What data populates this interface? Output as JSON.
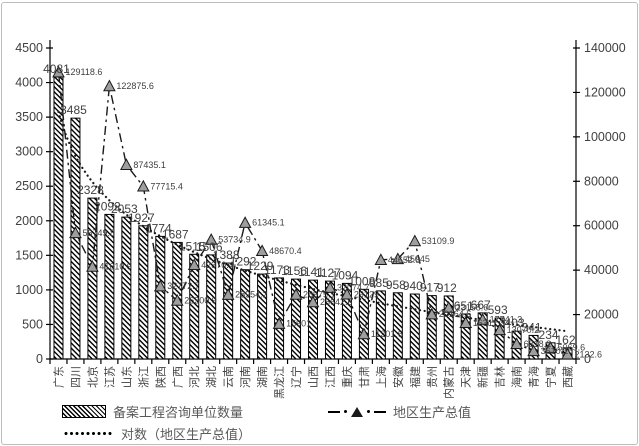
{
  "chart_data": {
    "type": "combo-bar-line",
    "title": "",
    "categories": [
      "广东",
      "四川",
      "北京",
      "江苏",
      "山东",
      "浙江",
      "陕西",
      "广西",
      "河北",
      "湖北",
      "云南",
      "河南",
      "湖南",
      "黑龙江",
      "辽宁",
      "山西",
      "江西",
      "重庆",
      "甘肃",
      "上海",
      "安徽",
      "福建",
      "贵州",
      "内蒙古",
      "天津",
      "新疆",
      "吉林",
      "海南",
      "青海",
      "宁夏",
      "西藏"
    ],
    "series": [
      {
        "name": "备案工程咨询单位数量",
        "type": "bar",
        "axis": "left",
        "pattern": "diagonal-hatch",
        "values": [
          4081,
          3485,
          2328,
          2092,
          2053,
          1927,
          1774,
          1687,
          1515,
          1506,
          1388,
          1292,
          1229,
          1173,
          1156,
          1141,
          1127,
          1094,
          1008,
          985,
          958,
          940,
          917,
          912,
          651,
          667,
          593,
          403,
          341,
          234,
          162
        ]
      },
      {
        "name": "地区生产总值",
        "type": "line",
        "axis": "right",
        "line_style": "dash-dot",
        "marker": "triangle",
        "values": [
          129118.6,
          56749.8,
          41610.9,
          122875.6,
          87435.1,
          77715.4,
          32772.7,
          26300.9,
          42370.4,
          53734.9,
          28954.2,
          61345.1,
          48670.4,
          15901.0,
          28975.1,
          25642.6,
          32074.7,
          29129.0,
          11201.6,
          44652.8,
          45045.0,
          53109.9,
          20164.6,
          23158.6,
          16311.3,
          17741.3,
          13070.2,
          6818.2,
          3610.1,
          5069.6,
          2132.6
        ],
        "labels": [
          "129118.6",
          "56749.8",
          "41610.9",
          "122875.6",
          "87435.1",
          "77715.4",
          "32772.7",
          "26300.9",
          "42370.4",
          "53734.9",
          "28954.2",
          "61345.1",
          "48670.4",
          "15901",
          "28975.1",
          "25642.6",
          "32074.7",
          "29129",
          "11201.6",
          "44652.8",
          "45045",
          "53109.9",
          "20164.6",
          "23158.6",
          "16311.3",
          "17741.3",
          "13070.2",
          "6818.2",
          "3610.1",
          "5069.6",
          "2132.6"
        ]
      },
      {
        "name": "对数（地区生产总值）",
        "type": "log-trendline",
        "axis": "right",
        "line_style": "dotted",
        "trend_a": 111300,
        "trend_b": 28770
      }
    ],
    "left_axis": {
      "min": 0,
      "max": 4500,
      "step": 500,
      "tick_labels": [
        "0",
        "500",
        "1000",
        "1500",
        "2000",
        "2500",
        "3000",
        "3500",
        "4000",
        "4500"
      ]
    },
    "right_axis": {
      "min": 0,
      "max": 140000,
      "step": 20000,
      "tick_labels": [
        "0",
        "20000",
        "40000",
        "60000",
        "80000",
        "100000",
        "120000",
        "140000"
      ]
    },
    "legend": [
      {
        "label": "备案工程咨询单位数量",
        "swatch": "hatched-bar"
      },
      {
        "label": "地区生产总值",
        "swatch": "dash-dot-triangle"
      },
      {
        "label": "对数（地区生产总值）",
        "swatch": "dotted-line"
      }
    ],
    "legend_position": "bottom",
    "grid": false,
    "colors": {
      "bar_stroke": "#000000",
      "line": "#1a1a1a",
      "marker_fill": "#9e9e9e",
      "label_text": "#3f3f3f",
      "axis_text": "#404040",
      "legend_text": "#595959",
      "frame_border": "#bdbdbd"
    }
  }
}
